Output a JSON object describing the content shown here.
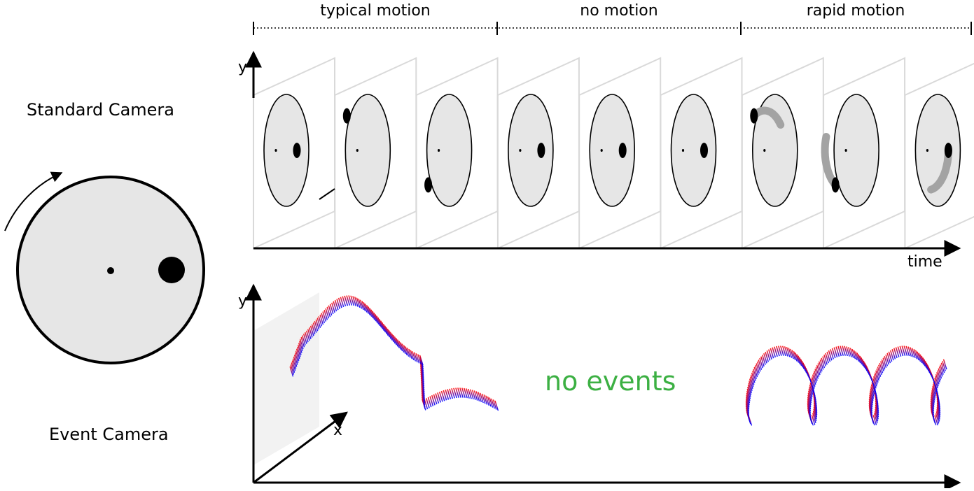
{
  "phases": [
    {
      "label": "typical motion"
    },
    {
      "label": "no motion"
    },
    {
      "label": "rapid motion"
    }
  ],
  "labels": {
    "standard_camera": "Standard Camera",
    "event_camera": "Event Camera",
    "no_events": "no events",
    "time_axis": "time",
    "y_axis_top": "y",
    "y_axis_bottom": "y",
    "x_axis": "x"
  },
  "frames": [
    {
      "phase": "typical motion",
      "blob_angle_deg": 0
    },
    {
      "phase": "typical motion",
      "blob_angle_deg": 120
    },
    {
      "phase": "typical motion",
      "blob_angle_deg": 240
    },
    {
      "phase": "no motion",
      "blob_angle_deg": 0
    },
    {
      "phase": "no motion",
      "blob_angle_deg": 0
    },
    {
      "phase": "no motion",
      "blob_angle_deg": 0
    },
    {
      "phase": "rapid motion",
      "blob_angle_deg": 120,
      "motion_blur": true
    },
    {
      "phase": "rapid motion",
      "blob_angle_deg": 240,
      "motion_blur": true
    },
    {
      "phase": "rapid motion",
      "blob_angle_deg": 0,
      "motion_blur": true
    }
  ],
  "colors": {
    "disk_fill": "#e6e6e6",
    "frame_edge": "#d9d9d9",
    "blur": "#a3a3a3",
    "event_positive": "#ff0000",
    "event_negative": "#0000ff",
    "no_events_text": "#3cb043",
    "image_plane": "#f2f2f2"
  }
}
